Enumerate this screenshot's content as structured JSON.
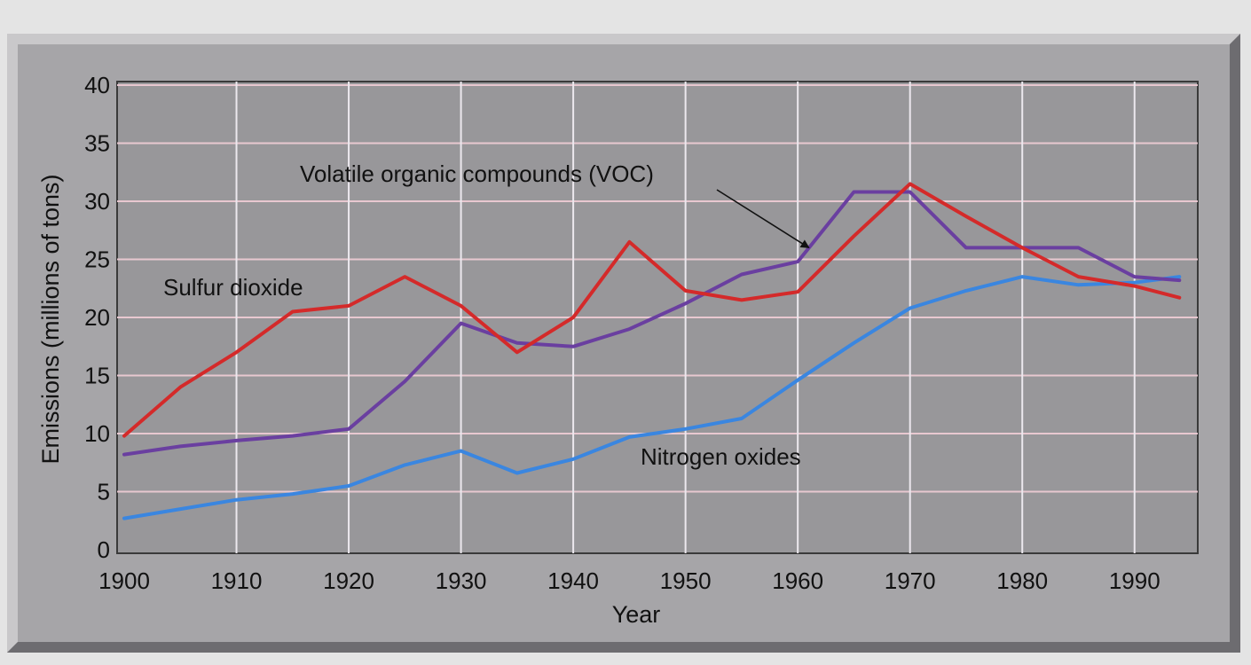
{
  "chart_data": {
    "type": "line",
    "xlabel": "Year",
    "ylabel": "Emissions (millions of tons)",
    "xlim": [
      1900,
      1995
    ],
    "ylim": [
      0,
      40
    ],
    "xticks": [
      "1900",
      "1910",
      "1920",
      "1930",
      "1940",
      "1950",
      "1960",
      "1970",
      "1980",
      "1990"
    ],
    "yticks": [
      "0",
      "5",
      "10",
      "15",
      "20",
      "25",
      "30",
      "35",
      "40"
    ],
    "grid": true,
    "legend": "none",
    "series": [
      {
        "name": "Sulfur dioxide",
        "color": "#d42a2a",
        "x": [
          1900,
          1905,
          1910,
          1915,
          1920,
          1925,
          1930,
          1935,
          1940,
          1945,
          1950,
          1955,
          1960,
          1965,
          1970,
          1975,
          1980,
          1985,
          1990,
          1994
        ],
        "y": [
          9.8,
          14.0,
          17.0,
          20.5,
          21.0,
          23.5,
          21.0,
          17.0,
          20.0,
          26.5,
          22.3,
          21.5,
          22.2,
          27.0,
          31.5,
          28.7,
          26.0,
          23.5,
          22.7,
          21.7
        ]
      },
      {
        "name": "Volatile organic compounds (VOC)",
        "color": "#6a3fa0",
        "x": [
          1900,
          1905,
          1910,
          1915,
          1920,
          1925,
          1930,
          1935,
          1940,
          1945,
          1950,
          1955,
          1960,
          1965,
          1970,
          1975,
          1980,
          1985,
          1990,
          1994
        ],
        "y": [
          8.2,
          8.9,
          9.4,
          9.8,
          10.4,
          14.5,
          19.5,
          17.8,
          17.5,
          19.0,
          21.2,
          23.7,
          24.8,
          30.8,
          30.8,
          26.0,
          26.0,
          26.0,
          23.5,
          23.2
        ]
      },
      {
        "name": "Nitrogen oxides",
        "color": "#3a86e0",
        "x": [
          1900,
          1905,
          1910,
          1915,
          1920,
          1925,
          1930,
          1935,
          1940,
          1945,
          1950,
          1955,
          1960,
          1965,
          1970,
          1975,
          1980,
          1985,
          1990,
          1994
        ],
        "y": [
          2.7,
          3.5,
          4.3,
          4.8,
          5.5,
          7.3,
          8.5,
          6.6,
          7.8,
          9.7,
          10.4,
          11.3,
          14.6,
          17.8,
          20.8,
          22.3,
          23.5,
          22.8,
          23.0,
          23.5
        ]
      }
    ],
    "annotations": [
      {
        "text": "Sulfur dioxide",
        "series": 0
      },
      {
        "text": "Volatile organic compounds (VOC)",
        "series": 1,
        "arrow_to": [
          1961,
          26
        ]
      },
      {
        "text": "Nitrogen oxides",
        "series": 2
      }
    ]
  }
}
